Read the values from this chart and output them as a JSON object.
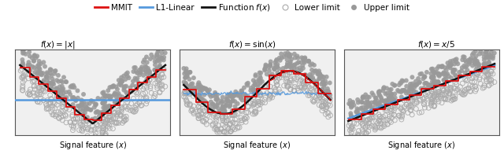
{
  "subplot_titles": [
    "$f(x) = |x|$",
    "$f(x) = \\sin(x)$",
    "$f(x) = x/5$"
  ],
  "xlabel": "Signal feature $(x)$",
  "n_points": 300,
  "seed": 0,
  "mmit_color": "#dd1111",
  "l1_color": "#5599dd",
  "func_color": "#111111",
  "scatter_lower_color": "#aaaaaa",
  "scatter_upper_color": "#999999",
  "scatter_size": 18,
  "bg_color": "#f0f0f0"
}
